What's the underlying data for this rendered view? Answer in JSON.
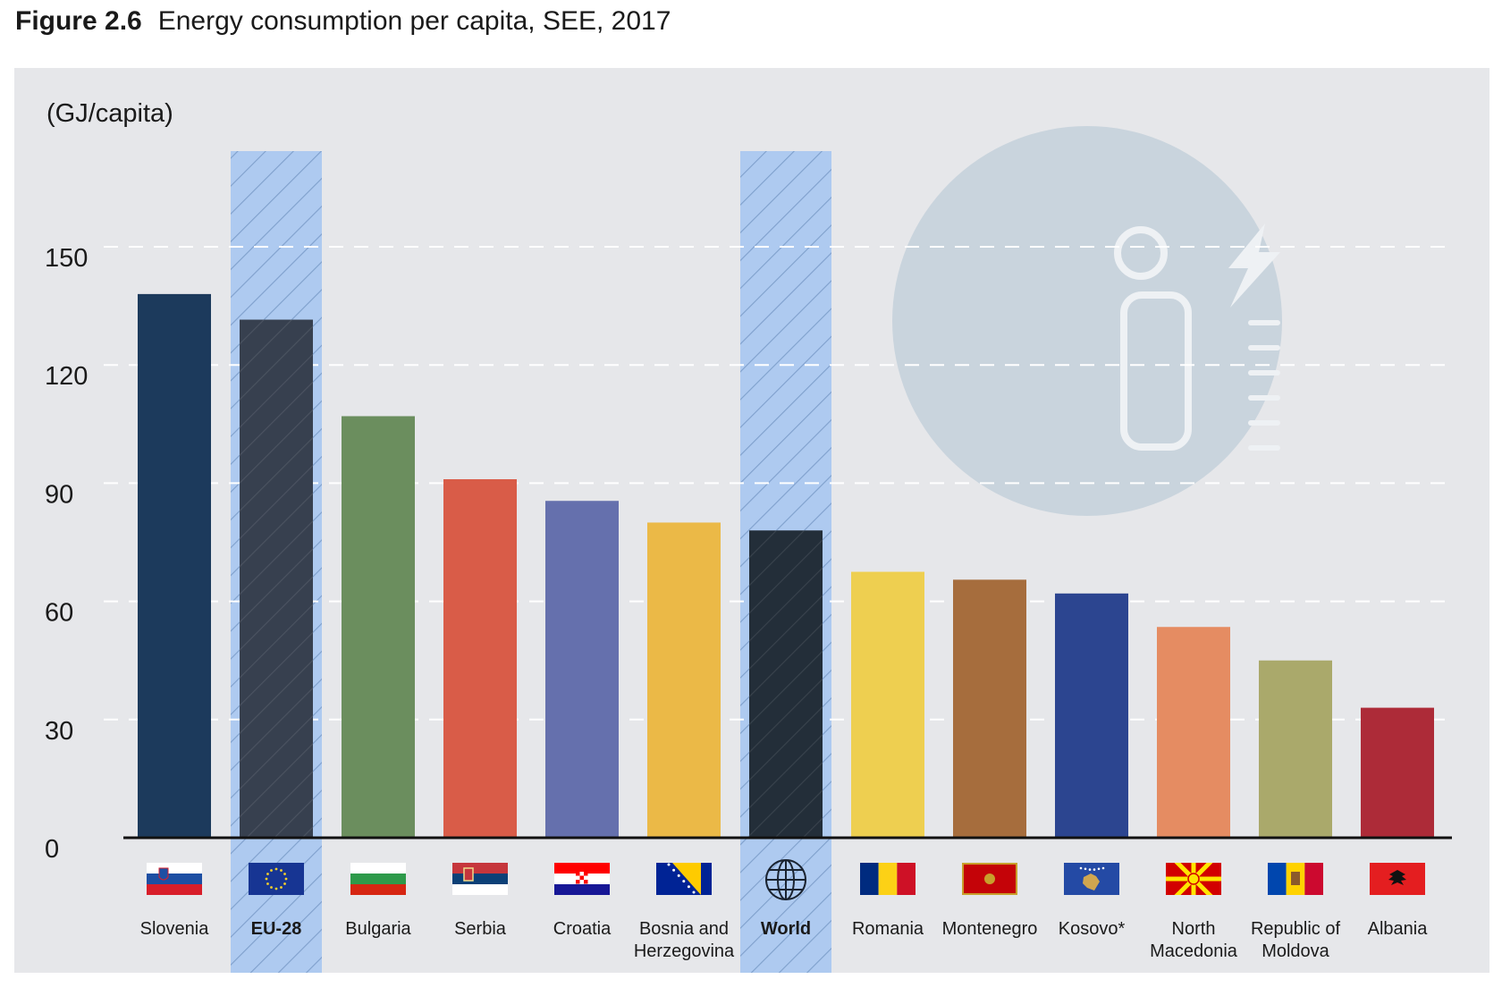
{
  "figure": {
    "number": "Figure 2.6",
    "title": "Energy consumption per capita, SEE, 2017"
  },
  "chart_data": {
    "type": "bar",
    "ylabel": "(GJ/capita)",
    "ylim": [
      0,
      158
    ],
    "yticks": [
      0,
      30,
      60,
      90,
      120,
      150
    ],
    "grid": "horizontal dashed",
    "categories": [
      "Slovenia",
      "EU-28",
      "Bulgaria",
      "Serbia",
      "Croatia",
      "Bosnia and Herzegovina",
      "World",
      "Romania",
      "Montenegro",
      "Kosovo*",
      "North Macedonia",
      "Republic of Moldova",
      "Albania"
    ],
    "label_lines": [
      [
        "Slovenia"
      ],
      [
        "EU-28"
      ],
      [
        "Bulgaria"
      ],
      [
        "Serbia"
      ],
      [
        "Croatia"
      ],
      [
        "Bosnia and",
        "Herzegovina"
      ],
      [
        "World"
      ],
      [
        "Romania"
      ],
      [
        "Montenegro"
      ],
      [
        "Kosovo*"
      ],
      [
        "North",
        "Macedonia"
      ],
      [
        "Republic of",
        "Moldova"
      ],
      [
        "Albania"
      ]
    ],
    "values": [
      138,
      131.5,
      107,
      91,
      85.5,
      80,
      78,
      67.5,
      65.5,
      62,
      53.5,
      45,
      33
    ],
    "highlighted": [
      "EU-28",
      "World"
    ],
    "colors": [
      "#1c3a5c",
      "#37404f",
      "#6b8e5e",
      "#d95c48",
      "#6570ad",
      "#ebb947",
      "#232e39",
      "#eecf50",
      "#a66d3d",
      "#2c4590",
      "#e58c62",
      "#aaa96b",
      "#ad2b38"
    ],
    "highlight_color": "#aecaf0",
    "flag_icons": [
      "slovenia-flag-icon",
      "eu-flag-icon",
      "bulgaria-flag-icon",
      "serbia-flag-icon",
      "croatia-flag-icon",
      "bosnia-flag-icon",
      "globe-icon",
      "romania-flag-icon",
      "montenegro-flag-icon",
      "kosovo-flag-icon",
      "north-macedonia-flag-icon",
      "moldova-flag-icon",
      "albania-flag-icon"
    ]
  },
  "footer": {
    "note": ""
  }
}
